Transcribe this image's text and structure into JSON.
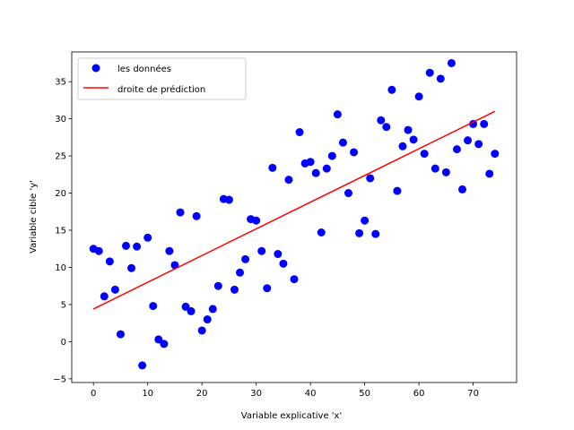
{
  "chart_data": {
    "type": "scatter",
    "xlabel": "Variable explicative 'x'",
    "ylabel": "Variable cible 'y'",
    "xlim": [
      -4,
      78
    ],
    "ylim": [
      -5.5,
      39
    ],
    "x_ticks": [
      0,
      10,
      20,
      30,
      40,
      50,
      60,
      70
    ],
    "y_ticks": [
      -5,
      0,
      5,
      10,
      15,
      20,
      25,
      30,
      35
    ],
    "grid": false,
    "legend_position": "top-left",
    "series": [
      {
        "name": "les données",
        "kind": "scatter",
        "color": "#0000ff",
        "x": [
          0,
          1,
          2,
          3,
          4,
          5,
          6,
          7,
          8,
          9,
          10,
          11,
          12,
          13,
          14,
          15,
          16,
          17,
          18,
          19,
          20,
          21,
          22,
          23,
          24,
          25,
          26,
          27,
          28,
          29,
          30,
          31,
          32,
          33,
          34,
          35,
          36,
          37,
          38,
          39,
          40,
          41,
          42,
          43,
          44,
          45,
          46,
          47,
          48,
          49,
          50,
          51,
          52,
          53,
          54,
          55,
          56,
          57,
          58,
          59,
          60,
          61,
          62,
          63,
          64,
          65,
          66,
          67,
          68,
          69,
          70,
          71,
          72,
          73,
          74
        ],
        "y": [
          12.5,
          12.2,
          6.1,
          10.8,
          7.0,
          1.0,
          12.9,
          9.9,
          12.8,
          -3.2,
          14.0,
          4.8,
          0.3,
          -0.3,
          12.2,
          10.3,
          17.4,
          4.7,
          4.1,
          16.9,
          1.5,
          3.0,
          4.4,
          7.5,
          19.2,
          19.1,
          7.0,
          9.3,
          11.1,
          16.5,
          16.3,
          12.2,
          7.2,
          23.4,
          11.8,
          10.5,
          21.8,
          8.4,
          28.2,
          24.0,
          24.2,
          22.7,
          14.7,
          23.3,
          25.0,
          30.6,
          26.8,
          20.0,
          25.5,
          14.6,
          16.3,
          22.0,
          14.5,
          29.8,
          28.9,
          33.9,
          20.3,
          26.3,
          28.5,
          27.2,
          33.0,
          25.3,
          36.2,
          23.3,
          35.4,
          22.8,
          37.5,
          25.9,
          20.5,
          27.1,
          29.3,
          26.6,
          29.3,
          22.6,
          25.3
        ]
      },
      {
        "name": "droite de prédiction",
        "kind": "line",
        "color": "#ff0000",
        "x": [
          0,
          74
        ],
        "y": [
          4.4,
          31.0
        ]
      }
    ]
  }
}
